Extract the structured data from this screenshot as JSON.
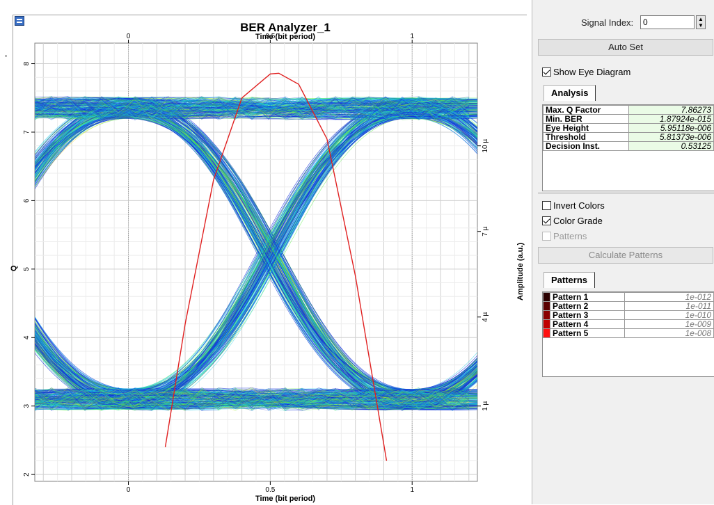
{
  "plot": {
    "title": "BER Analyzer_1",
    "x_axis_title_top": "Time (bit period)",
    "x_axis_title_bottom": "Time (bit period)",
    "y_axis_title_left": "Q",
    "y_axis_title_right": "Amplitude (a.u.)",
    "x_top_ticks": [
      "0",
      "0.5",
      "1"
    ],
    "x_bottom_ticks": [
      "0",
      "0.5",
      "1"
    ],
    "q_ticks": [
      "2",
      "3",
      "4",
      "5",
      "6",
      "7",
      "8"
    ],
    "amplitude_ticks": [
      "1 µ",
      "4 µ",
      "7 µ",
      "10 µ"
    ],
    "colors": {
      "trace_low": "#1434d8",
      "trace_mid": "#17c8e8",
      "trace_high": "#4cf03c",
      "trace_peak": "#f0e020",
      "q_curve": "#e02020"
    }
  },
  "chart_data": {
    "type": "line",
    "title": "BER Analyzer_1",
    "xlabel": "Time (bit period)",
    "ylabel": "Q",
    "y2label": "Amplitude (a.u.)",
    "xlim": [
      -0.33,
      1.23
    ],
    "ylim": [
      1.9,
      8.3
    ],
    "grid": true,
    "series": [
      {
        "x": [
          0.13,
          0.2,
          0.3,
          0.4,
          0.5,
          0.53,
          0.6,
          0.7,
          0.8,
          0.91
        ],
        "y": [
          2.4,
          4.2,
          6.3,
          7.5,
          7.85,
          7.86,
          7.7,
          6.9,
          4.9,
          2.2
        ]
      }
    ]
  },
  "panel": {
    "signal_index_label": "Signal Index:",
    "signal_index_value": "0",
    "autoset_label": "Auto Set",
    "show_eye_label": "Show Eye Diagram",
    "show_eye_checked": true,
    "analysis_tab": "Analysis",
    "analysis": [
      {
        "key": "Max. Q Factor",
        "value": "7.86273"
      },
      {
        "key": "Min. BER",
        "value": "1.87924e-015"
      },
      {
        "key": "Eye Height",
        "value": "5.95118e-006"
      },
      {
        "key": "Threshold",
        "value": "5.81373e-006"
      },
      {
        "key": "Decision Inst.",
        "value": "0.53125"
      }
    ],
    "invert_colors_label": "Invert Colors",
    "color_grade_label": "Color Grade",
    "patterns_check_label": "Patterns",
    "calculate_patterns_label": "Calculate Patterns",
    "patterns_tab": "Patterns",
    "patterns": [
      {
        "name": "Pattern 1",
        "value": "1e-012",
        "color": "#2a0000"
      },
      {
        "name": "Pattern 2",
        "value": "1e-011",
        "color": "#5a0000"
      },
      {
        "name": "Pattern 3",
        "value": "1e-010",
        "color": "#8a0000"
      },
      {
        "name": "Pattern 4",
        "value": "1e-009",
        "color": "#c00000"
      },
      {
        "name": "Pattern 5",
        "value": "1e-008",
        "color": "#ff1010"
      }
    ]
  }
}
